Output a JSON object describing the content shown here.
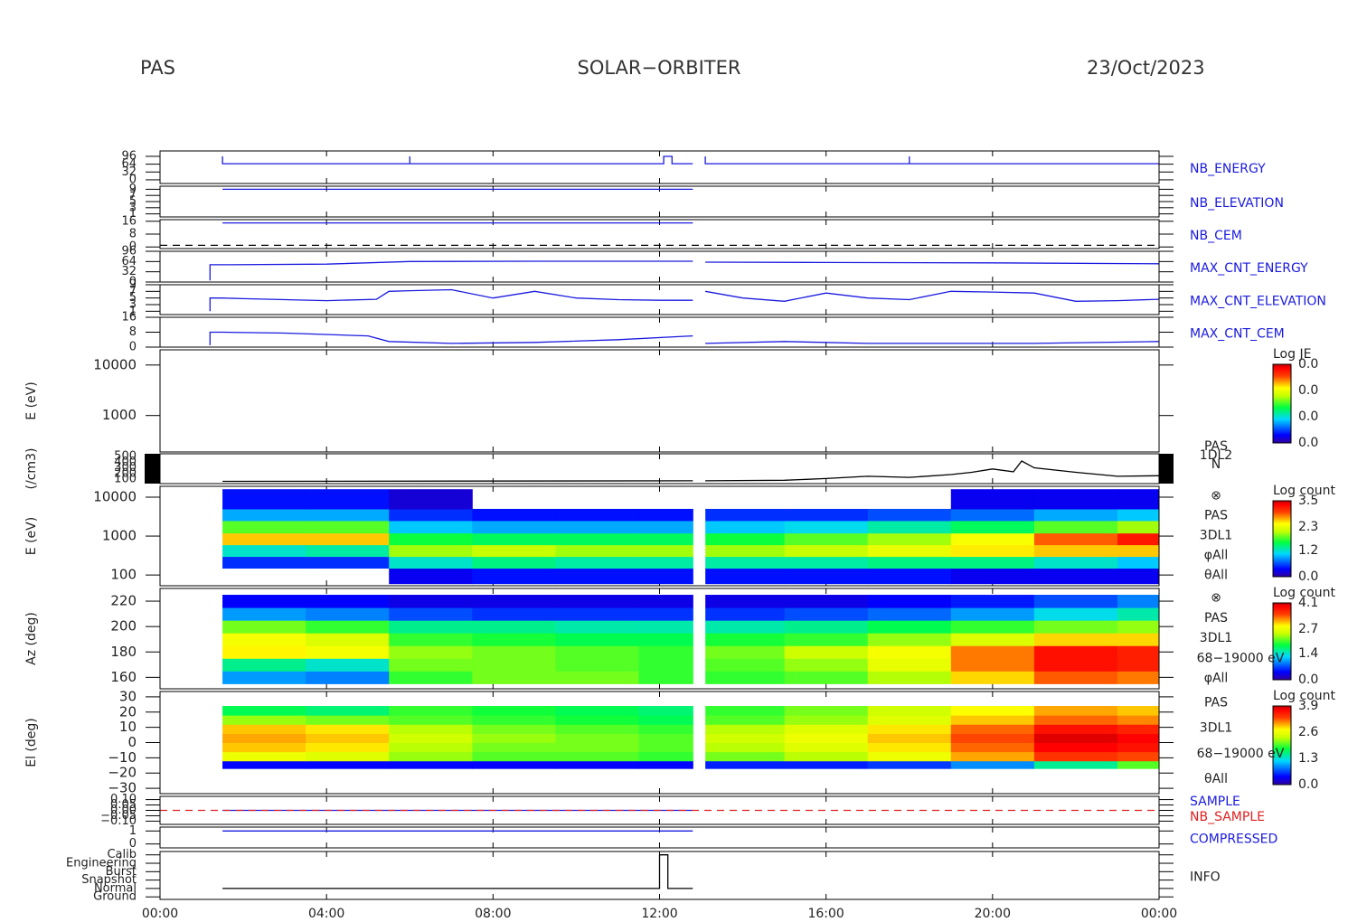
{
  "header": {
    "left": "PAS",
    "center": "SOLAR−ORBITER",
    "right": "23/Oct/2023"
  },
  "chart_data": [
    {
      "type": "line",
      "xlim": [
        0,
        24
      ],
      "ylim": [
        -15,
        118
      ],
      "yticks": [
        0,
        32,
        64,
        96
      ],
      "series": [
        {
          "name": "NB_ENERGY",
          "color": "#1a1adf",
          "x": [
            1.5,
            1.5,
            6,
            6,
            6,
            12.1,
            12.1,
            12.3,
            12.3,
            12.8,
            12.9,
            13.1,
            13.1,
            18,
            18,
            18,
            24
          ],
          "values": [
            96,
            66,
            66,
            96,
            66,
            66,
            96,
            96,
            66,
            66,
            null,
            96,
            66,
            66,
            96,
            66,
            66
          ]
        }
      ]
    },
    {
      "type": "line",
      "xlim": [
        0,
        24
      ],
      "ylim": [
        0,
        10
      ],
      "yticks": [
        1,
        3,
        5,
        7,
        9
      ],
      "series": [
        {
          "name": "NB_ELEVATION",
          "color": "#1a1adf",
          "x": [
            1.5,
            12.8
          ],
          "values": [
            9,
            9
          ]
        }
      ]
    },
    {
      "type": "line",
      "xlim": [
        0,
        24
      ],
      "ylim": [
        -1,
        17
      ],
      "yticks": [
        0,
        8,
        16
      ],
      "series": [
        {
          "name": "NB_CEM",
          "color": "#1a1adf",
          "x": [
            1.5,
            12.8
          ],
          "values": [
            15,
            15
          ]
        },
        {
          "color": "#000000",
          "dash": true,
          "x": [
            0,
            24
          ],
          "values": [
            1,
            1
          ]
        }
      ]
    },
    {
      "type": "line",
      "xlim": [
        0,
        24
      ],
      "ylim": [
        0,
        96
      ],
      "yticks": [
        0,
        32,
        64,
        96
      ],
      "series": [
        {
          "name": "MAX_CNT_ENERGY",
          "color": "#1a1adf",
          "x": [
            1.2,
            1.2,
            1.5,
            4,
            6,
            9,
            12.8,
            12.9,
            13.1,
            16,
            20,
            24
          ],
          "values": [
            5,
            54,
            54,
            56,
            64,
            65,
            65,
            null,
            62,
            61,
            60,
            57
          ]
        }
      ]
    },
    {
      "type": "line",
      "xlim": [
        0,
        24
      ],
      "ylim": [
        0,
        9
      ],
      "yticks": [
        1,
        3,
        5,
        7,
        9
      ],
      "series": [
        {
          "name": "MAX_CNT_ELEVATION",
          "color": "#1a1adf",
          "x": [
            1.2,
            1.2,
            1.5,
            2,
            3,
            4,
            5.2,
            5.5,
            6,
            7,
            8,
            9,
            10,
            11,
            12,
            12.8,
            12.9,
            13.1,
            14,
            15,
            16,
            17,
            18,
            19,
            20,
            21,
            22,
            23,
            24
          ],
          "values": [
            1,
            5,
            5,
            4.8,
            4.5,
            4.2,
            4.6,
            7,
            7.2,
            7.5,
            5,
            7,
            5,
            4.5,
            4.3,
            4.3,
            null,
            7,
            5,
            4,
            6.5,
            5,
            4.5,
            7,
            6.8,
            6.5,
            4,
            4.2,
            4.6
          ]
        }
      ]
    },
    {
      "type": "line",
      "xlim": [
        0,
        24
      ],
      "ylim": [
        0,
        16
      ],
      "yticks": [
        0,
        8,
        16
      ],
      "series": [
        {
          "name": "MAX_CNT_CEM",
          "color": "#1a1adf",
          "x": [
            1.2,
            1.2,
            1.5,
            3,
            5,
            5.5,
            7,
            9,
            11,
            12.8,
            12.9,
            13.1,
            15,
            17,
            19,
            21,
            24
          ],
          "values": [
            1,
            8,
            8,
            7.5,
            6,
            3,
            2,
            2.5,
            4,
            6,
            null,
            2,
            3,
            2,
            2,
            2,
            3
          ]
        }
      ]
    },
    {
      "type": "heatmap",
      "ylabel": "E (eV)",
      "log": true,
      "xlim": [
        0,
        24
      ],
      "ylim": [
        190,
        20000
      ],
      "yticks": [
        1000,
        10000
      ],
      "xbins": [],
      "ybins": [],
      "values": [],
      "colorbar": {
        "title": "Log JE",
        "labels": [
          "0.0",
          "0.0",
          "0.0",
          "0.0"
        ]
      }
    },
    {
      "type": "line",
      "ylabel": "(/cm3)",
      "xlim": [
        0,
        24
      ],
      "ylim": [
        20,
        548
      ],
      "yticks": [
        100,
        200,
        300,
        400,
        500
      ],
      "texts": [
        "PAS",
        "1DL2",
        "N"
      ],
      "series": [
        {
          "color": "#000000",
          "x": [
            1.5,
            12.8,
            12.9,
            13.1,
            15,
            16,
            17,
            18,
            19,
            19.5,
            20,
            20.5,
            20.7,
            21,
            22,
            23,
            24
          ],
          "values": [
            60,
            70,
            null,
            70,
            80,
            110,
            150,
            130,
            180,
            220,
            280,
            230,
            420,
            300,
            220,
            150,
            160
          ]
        }
      ]
    },
    {
      "type": "heatmap",
      "ylabel": "E (eV)",
      "log": true,
      "xlim": [
        0,
        24
      ],
      "ylim": [
        53,
        19000
      ],
      "yticks": [
        100,
        1000,
        10000
      ],
      "texts": [
        "⊗",
        "PAS",
        "3DL1",
        "φAll",
        "θAll"
      ],
      "xbins": [
        1.5,
        3.5,
        5.5,
        7.5,
        9.5,
        11.5,
        12.8,
        13.1,
        15,
        17,
        19,
        21,
        23,
        24
      ],
      "ybins": [
        60,
        150,
        300,
        600,
        1200,
        2500,
        5000,
        16000
      ],
      "values": [
        [
          null,
          null,
          0.3,
          0.4,
          0.4,
          0.4,
          null,
          0.4,
          0.4,
          0.4,
          0.3,
          0.3,
          0.3
        ],
        [
          0.5,
          0.5,
          1.2,
          1.4,
          1.3,
          1.3,
          null,
          1.3,
          1.3,
          1.4,
          1.4,
          1.2,
          1.0
        ],
        [
          1.2,
          1.3,
          2.0,
          2.1,
          2.0,
          2.0,
          null,
          2.0,
          2.1,
          2.3,
          2.5,
          2.6,
          2.6
        ],
        [
          2.6,
          2.6,
          1.6,
          1.5,
          1.5,
          1.5,
          null,
          1.6,
          1.8,
          2.0,
          2.4,
          2.9,
          3.2
        ],
        [
          1.8,
          1.8,
          1.0,
          0.9,
          0.9,
          0.9,
          null,
          1.0,
          1.1,
          1.3,
          1.5,
          1.8,
          2.0
        ],
        [
          0.9,
          0.9,
          0.5,
          0.4,
          0.4,
          0.4,
          null,
          0.5,
          0.5,
          0.6,
          0.7,
          0.9,
          1.0
        ],
        [
          0.4,
          0.4,
          0.2,
          null,
          null,
          null,
          null,
          null,
          null,
          null,
          0.3,
          0.3,
          0.3
        ]
      ],
      "colorbar": {
        "title": "Log count",
        "lim": [
          0,
          3.5
        ],
        "ticks": [
          {
            "value": 0,
            "label": "0.0"
          },
          1.2,
          2.3,
          3.5
        ]
      }
    },
    {
      "type": "heatmap",
      "ylabel": "Az (deg)",
      "xlim": [
        0,
        24
      ],
      "ylim": [
        151,
        230
      ],
      "yticks": [
        160,
        180,
        200,
        220
      ],
      "texts": [
        "⊗",
        "PAS",
        "3DL1",
        "68−19000 eV",
        "φAll"
      ],
      "xbins": [
        1.5,
        3.5,
        5.5,
        7.5,
        9.5,
        11.5,
        12.8,
        13.1,
        15,
        17,
        19,
        21,
        23,
        24
      ],
      "ybins": [
        155,
        165,
        175,
        185,
        195,
        205,
        215,
        225
      ],
      "values": [
        [
          1.0,
          0.9,
          2.0,
          2.2,
          2.2,
          2.0,
          null,
          2.0,
          2.1,
          2.4,
          3.0,
          3.4,
          3.3
        ],
        [
          1.6,
          1.4,
          2.2,
          2.2,
          2.1,
          2.0,
          null,
          2.1,
          2.3,
          2.7,
          3.3,
          3.8,
          3.7
        ],
        [
          2.9,
          2.8,
          2.3,
          2.2,
          2.1,
          2.0,
          null,
          2.2,
          2.5,
          2.8,
          3.3,
          3.8,
          3.7
        ],
        [
          2.8,
          2.6,
          2.0,
          1.9,
          1.8,
          1.8,
          null,
          1.9,
          2.0,
          2.3,
          2.6,
          3.0,
          3.0
        ],
        [
          2.2,
          2.0,
          1.6,
          1.6,
          1.5,
          1.5,
          null,
          1.5,
          1.6,
          1.8,
          2.0,
          2.2,
          2.3
        ],
        [
          1.0,
          0.9,
          0.7,
          0.6,
          0.6,
          0.6,
          null,
          0.6,
          0.7,
          0.8,
          1.0,
          1.3,
          1.5
        ],
        [
          0.4,
          0.4,
          0.3,
          0.3,
          0.3,
          0.3,
          null,
          0.3,
          0.3,
          0.4,
          0.5,
          0.7,
          0.9
        ]
      ],
      "colorbar": {
        "title": "Log count",
        "lim": [
          0,
          4.1
        ],
        "ticks": [
          {
            "value": 0,
            "label": "0.0"
          },
          1.4,
          2.7,
          4.1
        ]
      }
    },
    {
      "type": "heatmap",
      "ylabel": "El (deg)",
      "xlim": [
        0,
        24
      ],
      "ylim": [
        -33.5,
        33.5
      ],
      "yticks": [
        {
          "value": -30,
          "label": "−30"
        },
        {
          "value": -20,
          "label": "−20"
        },
        {
          "value": -10,
          "label": "−10"
        },
        0,
        10,
        20,
        30
      ],
      "texts": [
        "PAS",
        "3DL1",
        "68−19000 eV",
        "θAll"
      ],
      "xbins": [
        1.5,
        3.5,
        5.5,
        7.5,
        9.5,
        11.5,
        12.8,
        13.1,
        15,
        17,
        19,
        21,
        23,
        24
      ],
      "ybins": [
        -17,
        -12,
        -6,
        0,
        6,
        12,
        18,
        24
      ],
      "values": [
        [
          0.4,
          0.4,
          0.4,
          0.4,
          0.4,
          0.4,
          null,
          0.5,
          0.5,
          0.6,
          0.9,
          1.5,
          2.0
        ],
        [
          2.6,
          2.5,
          2.2,
          2.0,
          2.0,
          1.9,
          null,
          2.1,
          2.3,
          2.6,
          3.0,
          3.4,
          3.3
        ],
        [
          2.9,
          2.8,
          2.3,
          2.1,
          2.1,
          2.0,
          null,
          2.3,
          2.5,
          2.8,
          3.2,
          3.7,
          3.6
        ],
        [
          3.0,
          2.9,
          2.4,
          2.2,
          2.1,
          2.0,
          null,
          2.4,
          2.6,
          2.9,
          3.3,
          3.8,
          3.7
        ],
        [
          2.9,
          2.8,
          2.3,
          2.1,
          2.0,
          1.9,
          null,
          2.3,
          2.5,
          2.8,
          3.2,
          3.6,
          3.5
        ],
        [
          2.2,
          2.1,
          2.0,
          1.9,
          1.8,
          1.7,
          null,
          2.0,
          2.2,
          2.5,
          2.9,
          3.2,
          3.1
        ],
        [
          1.7,
          1.6,
          1.9,
          1.8,
          1.7,
          1.6,
          null,
          1.9,
          2.1,
          2.4,
          2.7,
          3.0,
          2.9
        ]
      ],
      "colorbar": {
        "title": "Log count",
        "lim": [
          0,
          3.9
        ],
        "ticks": [
          {
            "value": 0,
            "label": "0.0"
          },
          1.3,
          2.6,
          3.9
        ]
      }
    },
    {
      "type": "line",
      "xlim": [
        0,
        24
      ],
      "ylim": [
        -0.13,
        0.13
      ],
      "yticks": [
        {
          "value": -0.1,
          "label": "−0.10"
        },
        {
          "value": -0.05,
          "label": "−0.05"
        },
        {
          "value": 0,
          "label": "0.00"
        },
        {
          "value": 0.05,
          "label": "0.05"
        },
        {
          "value": 0.1,
          "label": "0.10"
        }
      ],
      "series": [
        {
          "name": "SAMPLE",
          "color": "#1a1adf",
          "x": [
            1.5,
            12.8
          ],
          "values": [
            0,
            0
          ]
        },
        {
          "name": "NB_SAMPLE",
          "color": "#e02020",
          "dash": true,
          "x": [
            0,
            24
          ],
          "values": [
            0,
            0
          ]
        }
      ]
    },
    {
      "type": "line",
      "xlim": [
        0,
        24
      ],
      "ylim": [
        -0.3,
        1.3
      ],
      "yticks": [
        0,
        1
      ],
      "series": [
        {
          "name": "COMPRESSED",
          "color": "#1a1adf",
          "x": [
            1.5,
            12.8
          ],
          "values": [
            1,
            1
          ]
        }
      ]
    },
    {
      "type": "line",
      "xlim": [
        0,
        24
      ],
      "ylim": [
        -0.3,
        5.4
      ],
      "yticks": [
        {
          "value": 0,
          "label": "Ground"
        },
        {
          "value": 1,
          "label": "Normal"
        },
        {
          "value": 2,
          "label": "Snapshot"
        },
        {
          "value": 3,
          "label": "Burst"
        },
        {
          "value": 4,
          "label": "Engineering"
        },
        {
          "value": 5,
          "label": "Calib"
        }
      ],
      "xticks": [
        {
          "value": 0,
          "label": "00:00"
        },
        {
          "value": 4,
          "label": "04:00"
        },
        {
          "value": 8,
          "label": "08:00"
        },
        {
          "value": 12,
          "label": "12:00"
        },
        {
          "value": 16,
          "label": "16:00"
        },
        {
          "value": 20,
          "label": "20:00"
        },
        {
          "value": 24,
          "label": "00:00"
        }
      ],
      "series": [
        {
          "name": "INFO",
          "color": "#000000",
          "x": [
            1.5,
            12.0,
            12.0,
            12.2,
            12.2,
            12.8
          ],
          "values": [
            1,
            1,
            5,
            5,
            1,
            1
          ]
        }
      ]
    }
  ]
}
